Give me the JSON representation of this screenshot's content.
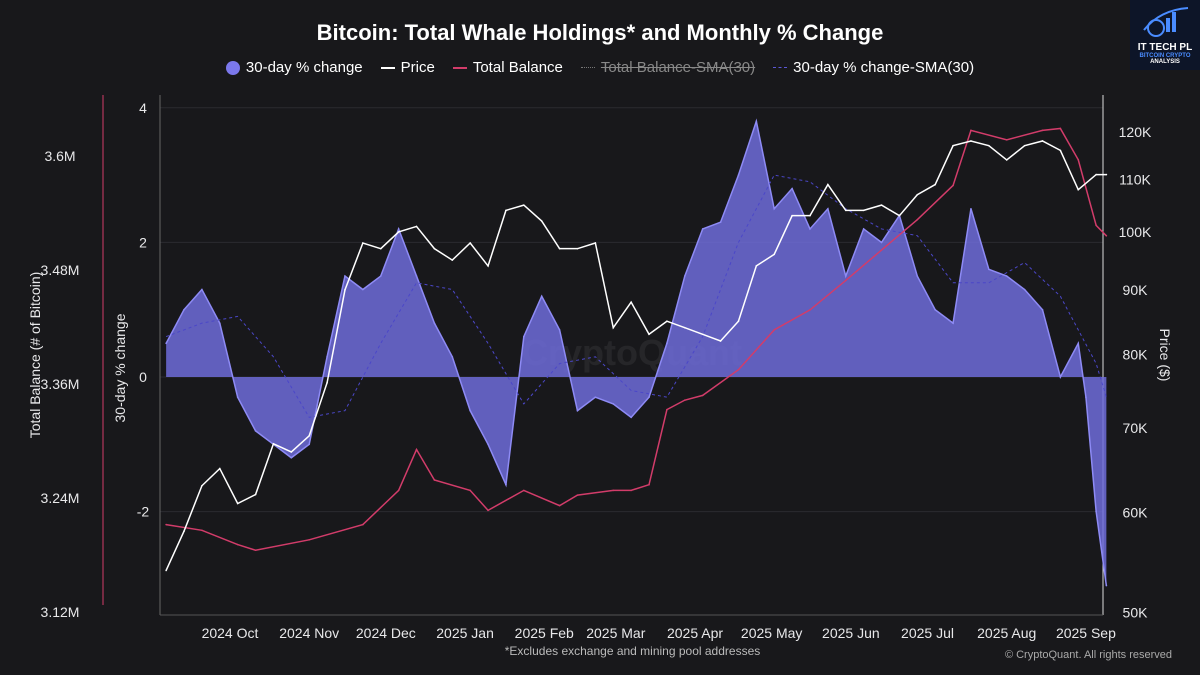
{
  "chart_data": {
    "type": "line",
    "title": "Bitcoin: Total Whale Holdings* and Monthly % Change",
    "footnote": "*Excludes exchange and mining pool addresses",
    "credit": "© CryptoQuant. All rights reserved",
    "watermark": "CryptoQuant",
    "logo_text": "IT TECH PL BITCOIN CRYPTO ANALYSIS",
    "legend": [
      "30-day % change",
      "Price",
      "Total Balance",
      "Total Balance-SMA(30)",
      "30-day % change-SMA(30)"
    ],
    "legend_placement": "top",
    "y_left_outer": {
      "label": "Total Balance (# of Bitcoin)",
      "ticks": [
        "3.6M",
        "3.48M",
        "3.36M",
        "3.24M",
        "3.12M"
      ],
      "range": [
        3.12,
        3.66
      ]
    },
    "y_left_inner": {
      "label": "30-day % change",
      "ticks": [
        "4",
        "2",
        "0",
        "-2"
      ],
      "range": [
        -3.5,
        4.3
      ]
    },
    "y_right": {
      "label": "Price ($)",
      "scale": "log",
      "ticks": [
        "120K",
        "110K",
        "100K",
        "90K",
        "80K",
        "70K",
        "60K",
        "50K"
      ],
      "range": [
        50,
        128
      ]
    },
    "x_ticks": [
      "2024 Oct",
      "2024 Nov",
      "2024 Dec",
      "2025 Jan",
      "2025 Feb",
      "2025 Mar",
      "2025 Apr",
      "2025 May",
      "2025 Jun",
      "2025 Jul",
      "2025 Aug",
      "2025 Sep"
    ],
    "colors": {
      "pct": "#7b78ec",
      "price": "#ffffff",
      "balance": "#d23c6a",
      "pct_sma": "#5b57d6"
    },
    "pct_change": {
      "dates": [
        "2024-09-06",
        "2024-09-13",
        "2024-09-20",
        "2024-09-27",
        "2024-10-04",
        "2024-10-11",
        "2024-10-18",
        "2024-10-25",
        "2024-11-01",
        "2024-11-08",
        "2024-11-15",
        "2024-11-22",
        "2024-11-29",
        "2024-12-06",
        "2024-12-13",
        "2024-12-20",
        "2024-12-27",
        "2025-01-03",
        "2025-01-10",
        "2025-01-17",
        "2025-01-24",
        "2025-01-31",
        "2025-02-07",
        "2025-02-14",
        "2025-02-21",
        "2025-02-28",
        "2025-03-07",
        "2025-03-14",
        "2025-03-21",
        "2025-03-28",
        "2025-04-04",
        "2025-04-11",
        "2025-04-18",
        "2025-04-25",
        "2025-05-02",
        "2025-05-09",
        "2025-05-16",
        "2025-05-23",
        "2025-05-30",
        "2025-06-06",
        "2025-06-13",
        "2025-06-20",
        "2025-06-27",
        "2025-07-04",
        "2025-07-11",
        "2025-07-18",
        "2025-07-25",
        "2025-08-01",
        "2025-08-08",
        "2025-08-15",
        "2025-08-22",
        "2025-08-29",
        "2025-09-01",
        "2025-09-05",
        "2025-09-09"
      ],
      "values": [
        0.5,
        1.0,
        1.3,
        0.8,
        -0.3,
        -0.8,
        -1.0,
        -1.2,
        -1.0,
        0.3,
        1.5,
        1.3,
        1.5,
        2.2,
        1.5,
        0.8,
        0.3,
        -0.5,
        -1.0,
        -1.6,
        0.6,
        1.2,
        0.7,
        -0.5,
        -0.3,
        -0.4,
        -0.6,
        -0.3,
        0.5,
        1.5,
        2.2,
        2.3,
        3.0,
        3.8,
        2.5,
        2.8,
        2.2,
        2.5,
        1.5,
        2.2,
        2.0,
        2.4,
        1.5,
        1.0,
        0.8,
        2.5,
        1.6,
        1.5,
        1.3,
        1.0,
        0.0,
        0.5,
        -0.3,
        -2.0,
        -3.1
      ]
    },
    "price_k": {
      "dates": [
        "2024-09-06",
        "2024-09-13",
        "2024-09-20",
        "2024-09-27",
        "2024-10-04",
        "2024-10-11",
        "2024-10-18",
        "2024-10-25",
        "2024-11-01",
        "2024-11-08",
        "2024-11-15",
        "2024-11-22",
        "2024-11-29",
        "2024-12-06",
        "2024-12-13",
        "2024-12-20",
        "2024-12-27",
        "2025-01-03",
        "2025-01-10",
        "2025-01-17",
        "2025-01-24",
        "2025-01-31",
        "2025-02-07",
        "2025-02-14",
        "2025-02-21",
        "2025-02-28",
        "2025-03-07",
        "2025-03-14",
        "2025-03-21",
        "2025-03-28",
        "2025-04-04",
        "2025-04-11",
        "2025-04-18",
        "2025-04-25",
        "2025-05-02",
        "2025-05-09",
        "2025-05-16",
        "2025-05-23",
        "2025-05-30",
        "2025-06-06",
        "2025-06-13",
        "2025-06-20",
        "2025-06-27",
        "2025-07-04",
        "2025-07-11",
        "2025-07-18",
        "2025-07-25",
        "2025-08-01",
        "2025-08-08",
        "2025-08-15",
        "2025-08-22",
        "2025-08-29",
        "2025-09-05",
        "2025-09-09"
      ],
      "values": [
        54,
        58,
        63,
        65,
        61,
        62,
        68,
        67,
        69,
        76,
        90,
        98,
        97,
        100,
        101,
        97,
        95,
        98,
        94,
        104,
        105,
        102,
        97,
        97,
        98,
        84,
        88,
        83,
        85,
        84,
        83,
        82,
        85,
        94,
        96,
        103,
        103,
        109,
        104,
        104,
        105,
        103,
        107,
        109,
        117,
        118,
        117,
        114,
        117,
        118,
        116,
        108,
        111,
        111
      ]
    },
    "total_balance_m": {
      "dates": [
        "2024-09-06",
        "2024-09-20",
        "2024-10-04",
        "2024-10-11",
        "2024-11-01",
        "2024-11-22",
        "2024-12-06",
        "2024-12-13",
        "2024-12-20",
        "2025-01-03",
        "2025-01-10",
        "2025-01-24",
        "2025-02-07",
        "2025-02-14",
        "2025-02-28",
        "2025-03-07",
        "2025-03-14",
        "2025-03-21",
        "2025-03-28",
        "2025-04-04",
        "2025-04-18",
        "2025-05-02",
        "2025-05-16",
        "2025-05-30",
        "2025-06-13",
        "2025-06-27",
        "2025-07-11",
        "2025-07-18",
        "2025-08-01",
        "2025-08-15",
        "2025-08-22",
        "2025-08-29",
        "2025-09-05",
        "2025-09-09"
      ],
      "values": [
        3.212,
        3.206,
        3.191,
        3.185,
        3.196,
        3.212,
        3.248,
        3.291,
        3.259,
        3.248,
        3.227,
        3.248,
        3.232,
        3.243,
        3.248,
        3.248,
        3.254,
        3.333,
        3.343,
        3.348,
        3.375,
        3.417,
        3.438,
        3.469,
        3.501,
        3.533,
        3.569,
        3.627,
        3.617,
        3.627,
        3.629,
        3.596,
        3.527,
        3.516
      ]
    },
    "pct_change_sma30": {
      "dates": [
        "2024-09-06",
        "2024-09-20",
        "2024-10-04",
        "2024-10-18",
        "2024-11-01",
        "2024-11-15",
        "2024-11-29",
        "2024-12-13",
        "2024-12-27",
        "2025-01-10",
        "2025-01-24",
        "2025-02-07",
        "2025-02-21",
        "2025-03-07",
        "2025-03-21",
        "2025-04-04",
        "2025-04-18",
        "2025-05-02",
        "2025-05-16",
        "2025-05-30",
        "2025-06-13",
        "2025-06-27",
        "2025-07-11",
        "2025-07-25",
        "2025-08-08",
        "2025-08-22",
        "2025-09-05",
        "2025-09-09"
      ],
      "values": [
        0.6,
        0.8,
        0.9,
        0.3,
        -0.6,
        -0.5,
        0.5,
        1.4,
        1.3,
        0.5,
        -0.4,
        0.2,
        0.3,
        -0.2,
        -0.3,
        0.6,
        2.0,
        3.0,
        2.9,
        2.5,
        2.2,
        2.1,
        1.4,
        1.4,
        1.7,
        1.2,
        0.2,
        -0.3
      ]
    }
  }
}
